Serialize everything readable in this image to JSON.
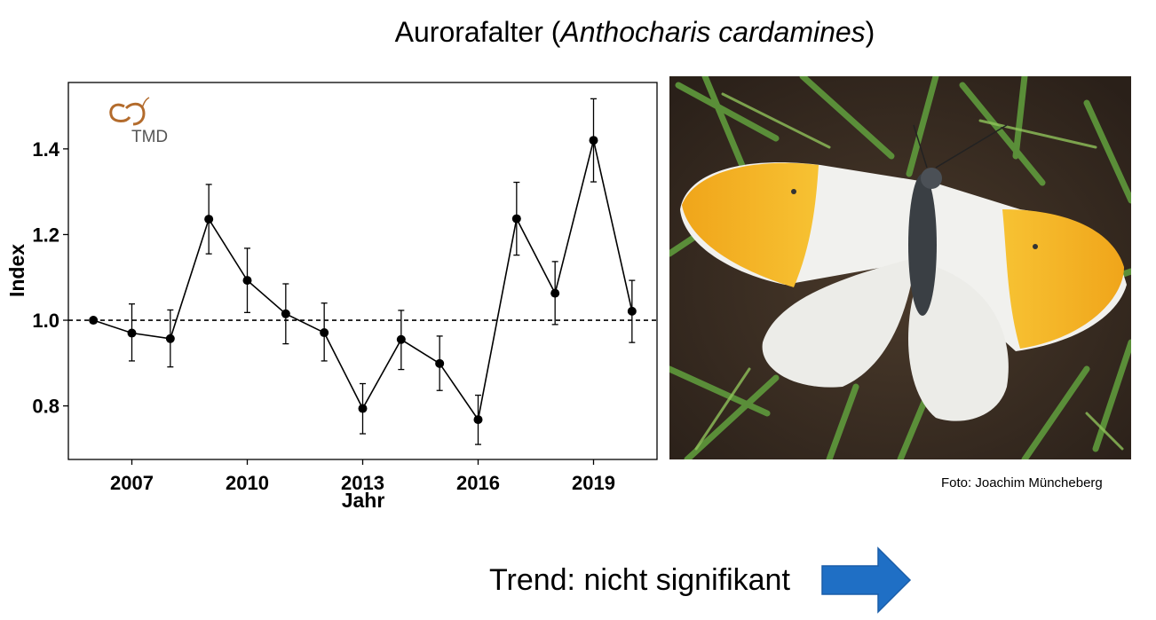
{
  "title": {
    "common_name": "Aurorafalter",
    "scientific_name": "Anthocharis cardamines"
  },
  "logo": {
    "text": "TMD",
    "color": "#b36b2c"
  },
  "chart_data": {
    "type": "line",
    "xlabel": "Jahr",
    "ylabel": "Index",
    "x_ticks": [
      2007,
      2010,
      2013,
      2016,
      2019
    ],
    "y_ticks": [
      0.8,
      1.0,
      1.2,
      1.4
    ],
    "y_tick_labels": [
      "0.8",
      "1.0",
      "1.2",
      "1.4"
    ],
    "xlim": [
      2005.35,
      2020.65
    ],
    "ylim": [
      0.675,
      1.555
    ],
    "reference_line": 1.0,
    "grid": false,
    "x": [
      2006,
      2007,
      2008,
      2009,
      2010,
      2011,
      2012,
      2013,
      2014,
      2015,
      2016,
      2017,
      2018,
      2019,
      2020
    ],
    "y": [
      1.0,
      0.97,
      0.957,
      1.236,
      1.093,
      1.015,
      0.971,
      0.794,
      0.955,
      0.899,
      0.768,
      1.237,
      1.063,
      1.42,
      1.021
    ],
    "lower": [
      1.0,
      0.905,
      0.891,
      1.155,
      1.018,
      0.945,
      0.905,
      0.735,
      0.885,
      0.836,
      0.71,
      1.152,
      0.99,
      1.323,
      0.948
    ],
    "upper": [
      1.0,
      1.038,
      1.024,
      1.317,
      1.168,
      1.085,
      1.04,
      0.852,
      1.023,
      0.963,
      0.825,
      1.322,
      1.137,
      1.517,
      1.093
    ]
  },
  "photo": {
    "credit": "Foto: Joachim Müncheberg"
  },
  "trend": {
    "label": "Trend: nicht signifikant",
    "arrow_color": "#1f6fc5",
    "arrow_direction": "right"
  }
}
